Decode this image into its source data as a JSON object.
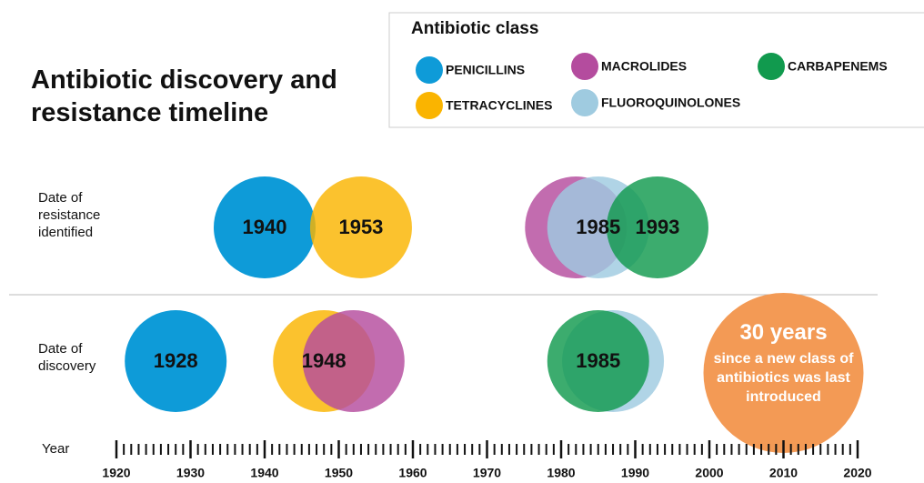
{
  "chart_data": {
    "type": "timeline",
    "title": "Antibiotic discovery and resistance timeline",
    "legend_title": "Antibiotic class",
    "rows": [
      "Date of resistance identified",
      "Date of discovery"
    ],
    "x_label": "Year",
    "xlim": [
      1920,
      2020
    ],
    "xticks": [
      1920,
      1930,
      1940,
      1950,
      1960,
      1970,
      1980,
      1990,
      2000,
      2010,
      2020
    ],
    "series": [
      {
        "name": "PENICILLINS",
        "color": "#0e9bd8",
        "values": [
          1940,
          1928
        ],
        "value_labels": [
          "1940",
          "1928"
        ]
      },
      {
        "name": "TETRACYCLINES",
        "color": "#fab400",
        "values": [
          1953,
          1948
        ],
        "value_labels": [
          "1953",
          "1948"
        ]
      },
      {
        "name": "MACROLIDES",
        "color": "#b44c9e",
        "values": [
          1982,
          1952
        ],
        "value_labels": [
          null,
          null
        ]
      },
      {
        "name": "FLUOROQUINOLONES",
        "color": "#9fcbe0",
        "values": [
          1985,
          1987
        ],
        "value_labels": [
          "1985",
          null
        ]
      },
      {
        "name": "CARBAPENEMS",
        "color": "#119a4e",
        "values": [
          1993,
          1985
        ],
        "value_labels": [
          "1993",
          "1985"
        ]
      }
    ],
    "annotation": {
      "year": 2010,
      "title": "30 years",
      "text": "since a new class of antibiotics was last introduced",
      "color": "#f39a55"
    }
  }
}
